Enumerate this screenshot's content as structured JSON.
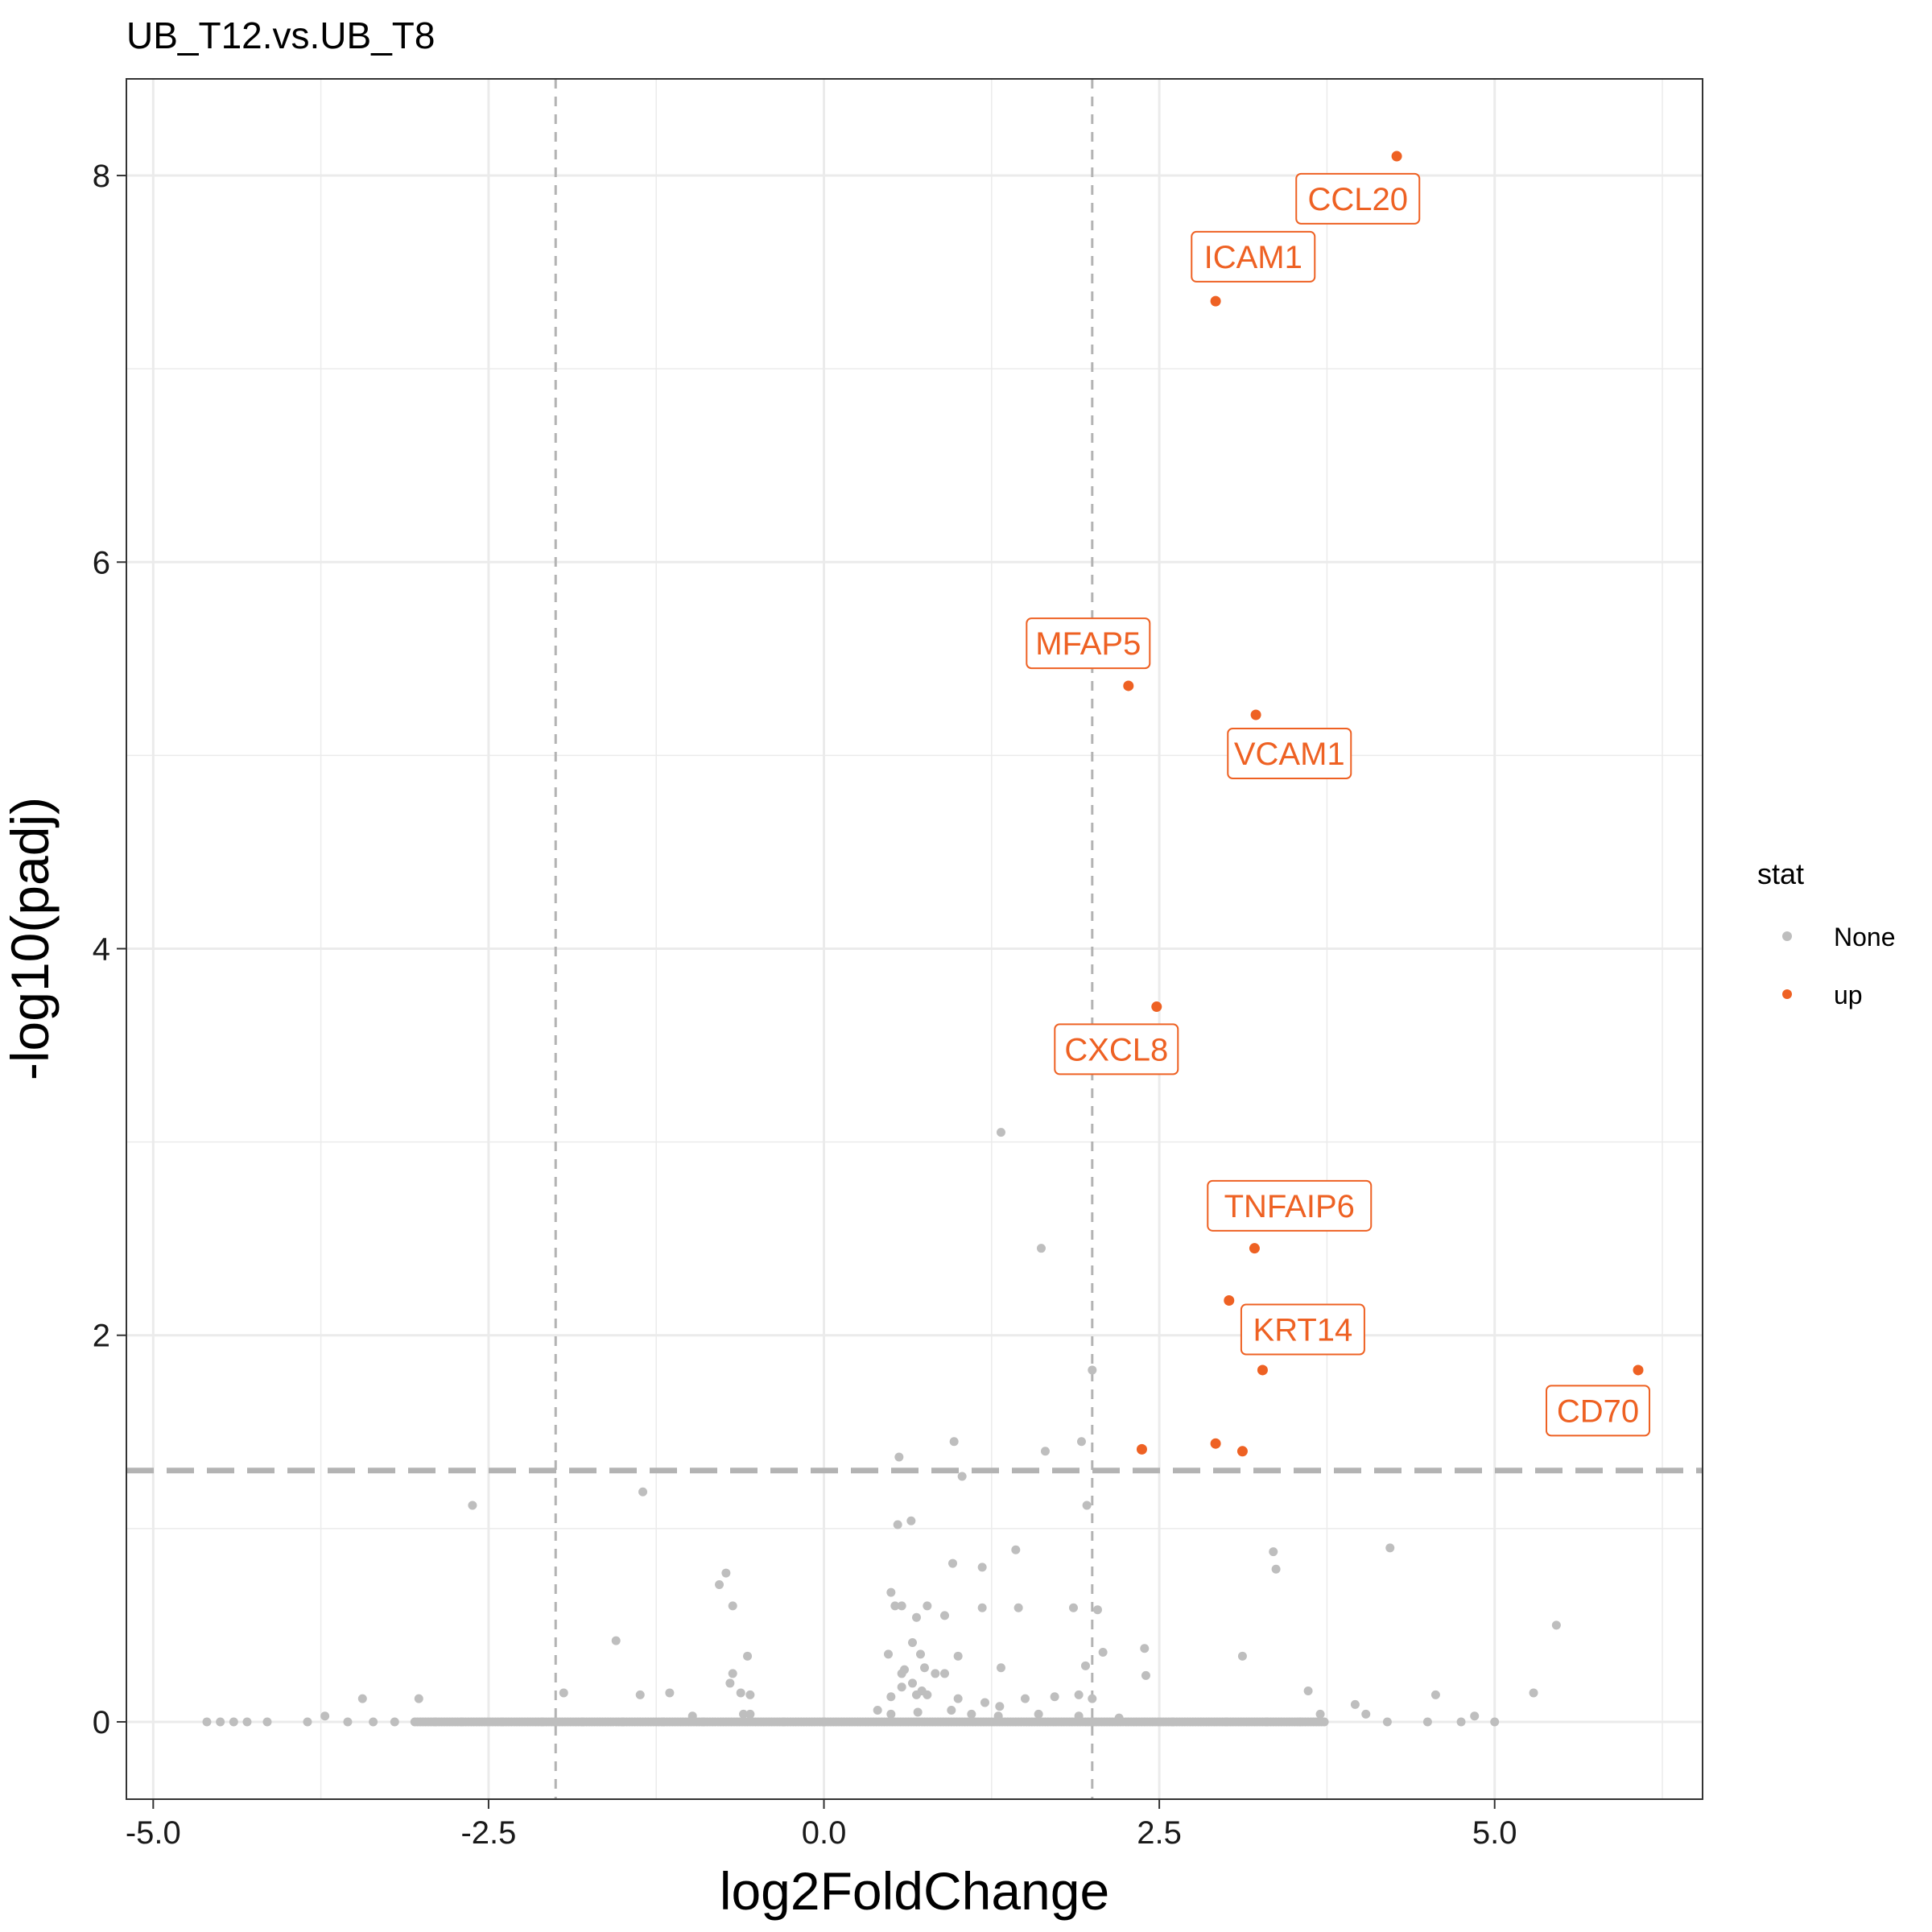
{
  "chart_data": {
    "type": "scatter",
    "title": "UB_T12.vs.UB_T8",
    "xlabel": "log2FoldChange",
    "ylabel": "-log10(padj)",
    "xlim": [
      -5.2,
      6.55
    ],
    "ylim": [
      -0.4,
      8.5
    ],
    "x_ticks": [
      -5.0,
      -2.5,
      0.0,
      2.5,
      5.0
    ],
    "x_tick_labels": [
      "-5.0",
      "-2.5",
      "0.0",
      "2.5",
      "5.0"
    ],
    "y_ticks": [
      0,
      2,
      4,
      6,
      8
    ],
    "y_tick_labels": [
      "0",
      "2",
      "4",
      "6",
      "8"
    ],
    "grid": true,
    "reference_lines": {
      "vertical": [
        -2,
        2
      ],
      "horizontal": 1.3
    },
    "legend": {
      "title": "stat",
      "placement": "right",
      "entries": [
        {
          "label": "None",
          "color": "#bebebe"
        },
        {
          "label": "up",
          "color": "#ee6123"
        }
      ]
    },
    "colors": {
      "none": "#bebebe",
      "up": "#ee6123",
      "ref_line": "#b3b3b3",
      "grid": "#ebebeb"
    },
    "series": [
      {
        "name": "up",
        "points": [
          {
            "x": 4.27,
            "y": 8.1,
            "label": "CCL20",
            "label_x": 3.98,
            "label_y": 7.88
          },
          {
            "x": 2.92,
            "y": 7.35,
            "label": "ICAM1",
            "label_x": 3.2,
            "label_y": 7.58
          },
          {
            "x": 2.27,
            "y": 5.36,
            "label": "MFAP5",
            "label_x": 1.97,
            "label_y": 5.58
          },
          {
            "x": 3.22,
            "y": 5.21,
            "label": "VCAM1",
            "label_x": 3.47,
            "label_y": 5.01
          },
          {
            "x": 2.48,
            "y": 3.7,
            "label": "CXCL8",
            "label_x": 2.18,
            "label_y": 3.48
          },
          {
            "x": 3.21,
            "y": 2.45,
            "label": "TNFAIP6",
            "label_x": 3.47,
            "label_y": 2.67
          },
          {
            "x": 3.02,
            "y": 2.18
          },
          {
            "x": 3.27,
            "y": 1.82,
            "label": "KRT14",
            "label_x": 3.57,
            "label_y": 2.03
          },
          {
            "x": 6.07,
            "y": 1.82,
            "label": "CD70",
            "label_x": 5.77,
            "label_y": 1.61
          },
          {
            "x": 2.37,
            "y": 1.41
          },
          {
            "x": 2.92,
            "y": 1.44
          },
          {
            "x": 3.12,
            "y": 1.4
          }
        ]
      },
      {
        "name": "None",
        "points": [
          [
            1.32,
            3.05
          ],
          [
            1.62,
            2.45
          ],
          [
            2.0,
            1.82
          ],
          [
            0.97,
            1.45
          ],
          [
            1.92,
            1.45
          ],
          [
            1.65,
            1.4
          ],
          [
            0.56,
            1.37
          ],
          [
            1.03,
            1.27
          ],
          [
            1.96,
            1.12
          ],
          [
            -2.62,
            1.12
          ],
          [
            -1.35,
            1.19
          ],
          [
            0.55,
            1.02
          ],
          [
            0.65,
            1.04
          ],
          [
            1.43,
            0.89
          ],
          [
            3.35,
            0.88
          ],
          [
            4.22,
            0.9
          ],
          [
            0.96,
            0.82
          ],
          [
            1.18,
            0.8
          ],
          [
            3.37,
            0.79
          ],
          [
            -0.73,
            0.77
          ],
          [
            -0.78,
            0.71
          ],
          [
            -0.68,
            0.6
          ],
          [
            0.5,
            0.67
          ],
          [
            0.53,
            0.6
          ],
          [
            0.58,
            0.6
          ],
          [
            0.77,
            0.6
          ],
          [
            1.18,
            0.59
          ],
          [
            1.45,
            0.59
          ],
          [
            1.86,
            0.59
          ],
          [
            2.04,
            0.58
          ],
          [
            0.69,
            0.54
          ],
          [
            0.9,
            0.55
          ],
          [
            5.46,
            0.5
          ],
          [
            -1.55,
            0.42
          ],
          [
            0.66,
            0.41
          ],
          [
            0.72,
            0.35
          ],
          [
            1.0,
            0.34
          ],
          [
            2.08,
            0.36
          ],
          [
            2.39,
            0.38
          ],
          [
            3.12,
            0.34
          ],
          [
            0.48,
            0.35
          ],
          [
            -0.57,
            0.34
          ],
          [
            -0.68,
            0.25
          ],
          [
            -0.7,
            0.2
          ],
          [
            0.6,
            0.27
          ],
          [
            0.58,
            0.25
          ],
          [
            0.75,
            0.28
          ],
          [
            0.83,
            0.25
          ],
          [
            0.9,
            0.25
          ],
          [
            1.32,
            0.28
          ],
          [
            1.95,
            0.29
          ],
          [
            2.4,
            0.24
          ],
          [
            0.66,
            0.2
          ],
          [
            0.58,
            0.18
          ],
          [
            -0.62,
            0.15
          ],
          [
            -0.55,
            0.14
          ],
          [
            0.5,
            0.13
          ],
          [
            0.69,
            0.14
          ],
          [
            0.77,
            0.14
          ],
          [
            0.73,
            0.16
          ],
          [
            3.61,
            0.16
          ],
          [
            5.29,
            0.15
          ],
          [
            4.56,
            0.14
          ],
          [
            -3.44,
            0.12
          ],
          [
            -3.02,
            0.12
          ],
          [
            -1.15,
            0.15
          ],
          [
            -1.37,
            0.14
          ],
          [
            -1.94,
            0.15
          ],
          [
            1.72,
            0.13
          ],
          [
            1.9,
            0.14
          ],
          [
            2.0,
            0.12
          ],
          [
            1.5,
            0.12
          ],
          [
            1.0,
            0.12
          ],
          [
            1.2,
            0.1
          ],
          [
            1.31,
            0.08
          ],
          [
            3.96,
            0.09
          ],
          [
            4.04,
            0.04
          ],
          [
            3.7,
            0.04
          ],
          [
            -4.6,
            0.0
          ],
          [
            -4.5,
            0.0
          ],
          [
            -4.4,
            0.0
          ],
          [
            -4.3,
            0.0
          ],
          [
            -4.15,
            0.0
          ],
          [
            -3.85,
            0.0
          ],
          [
            -3.72,
            0.03
          ],
          [
            -3.55,
            0.0
          ],
          [
            -3.36,
            0.0
          ],
          [
            -3.2,
            0.0
          ],
          [
            -2.9,
            0.0
          ],
          [
            -2.7,
            0.0
          ],
          [
            -2.4,
            0.0
          ],
          [
            -2.1,
            0.0
          ],
          [
            -1.8,
            0.0
          ],
          [
            -1.5,
            0.0
          ],
          [
            -1.2,
            0.0
          ],
          [
            -0.98,
            0.03
          ],
          [
            -0.9,
            0.0
          ],
          [
            -0.6,
            0.04
          ],
          [
            -0.55,
            0.04
          ],
          [
            -0.3,
            0.0
          ],
          [
            0.0,
            0.0
          ],
          [
            0.4,
            0.06
          ],
          [
            0.5,
            0.04
          ],
          [
            0.7,
            0.05
          ],
          [
            0.95,
            0.06
          ],
          [
            1.1,
            0.04
          ],
          [
            1.3,
            0.03
          ],
          [
            1.6,
            0.04
          ],
          [
            1.9,
            0.03
          ],
          [
            2.2,
            0.02
          ],
          [
            2.6,
            0.0
          ],
          [
            3.0,
            0.0
          ],
          [
            3.3,
            0.0
          ],
          [
            3.55,
            0.0
          ],
          [
            4.2,
            0.0
          ],
          [
            4.5,
            0.0
          ],
          [
            4.75,
            0.0
          ],
          [
            4.85,
            0.03
          ],
          [
            5.0,
            0.0
          ]
        ],
        "baseline_band": [
          -3.05,
          3.75
        ]
      }
    ]
  }
}
